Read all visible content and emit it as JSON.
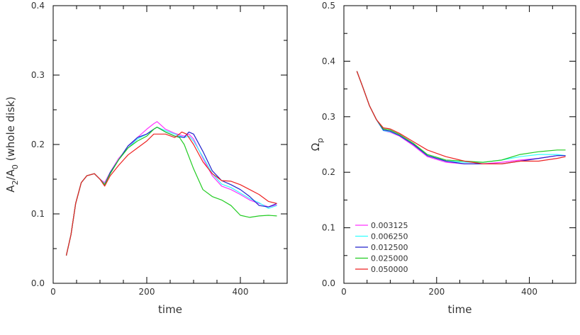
{
  "chart_data": [
    {
      "type": "line",
      "xlabel": "time",
      "ylabel_parts": [
        "A",
        "2",
        "/A",
        "0",
        " (whole disk)"
      ],
      "xlim": [
        0,
        500
      ],
      "ylim": [
        0,
        0.4
      ],
      "xticks": [
        {
          "v": 0,
          "label": "0"
        },
        {
          "v": 200,
          "label": "200"
        },
        {
          "v": 400,
          "label": "400"
        }
      ],
      "yticks": [
        {
          "v": 0,
          "label": "0.0"
        },
        {
          "v": 0.1,
          "label": "0.1"
        },
        {
          "v": 0.2,
          "label": "0.2"
        },
        {
          "v": 0.3,
          "label": "0.3"
        },
        {
          "v": 0.4,
          "label": "0.4"
        }
      ],
      "grid": false,
      "series": [
        {
          "color": "#ff33ff",
          "x": [
            28,
            38,
            48,
            60,
            72,
            88,
            100,
            110,
            122,
            140,
            160,
            180,
            200,
            215,
            222,
            240,
            260,
            280,
            290,
            300,
            320,
            340,
            360,
            380,
            400,
            420,
            440,
            460,
            478
          ],
          "y": [
            0.04,
            0.07,
            0.115,
            0.145,
            0.155,
            0.158,
            0.15,
            0.145,
            0.16,
            0.18,
            0.195,
            0.21,
            0.222,
            0.23,
            0.233,
            0.222,
            0.216,
            0.212,
            0.215,
            0.208,
            0.18,
            0.155,
            0.14,
            0.135,
            0.128,
            0.12,
            0.115,
            0.11,
            0.113
          ]
        },
        {
          "color": "#33ffff",
          "x": [
            28,
            38,
            48,
            60,
            72,
            88,
            100,
            110,
            122,
            140,
            160,
            180,
            200,
            215,
            222,
            240,
            260,
            280,
            290,
            300,
            320,
            340,
            360,
            380,
            400,
            420,
            440,
            460,
            478
          ],
          "y": [
            0.04,
            0.07,
            0.115,
            0.145,
            0.155,
            0.158,
            0.15,
            0.143,
            0.158,
            0.178,
            0.195,
            0.208,
            0.215,
            0.222,
            0.225,
            0.22,
            0.215,
            0.21,
            0.212,
            0.205,
            0.182,
            0.158,
            0.143,
            0.138,
            0.13,
            0.122,
            0.116,
            0.108,
            0.112
          ]
        },
        {
          "color": "#2222cc",
          "x": [
            28,
            38,
            48,
            60,
            72,
            88,
            100,
            110,
            122,
            140,
            160,
            180,
            200,
            215,
            222,
            240,
            260,
            280,
            290,
            300,
            320,
            340,
            360,
            380,
            400,
            420,
            440,
            460,
            478
          ],
          "y": [
            0.04,
            0.07,
            0.115,
            0.145,
            0.155,
            0.158,
            0.15,
            0.142,
            0.16,
            0.178,
            0.198,
            0.21,
            0.215,
            0.222,
            0.225,
            0.218,
            0.212,
            0.21,
            0.218,
            0.215,
            0.19,
            0.162,
            0.148,
            0.142,
            0.135,
            0.125,
            0.112,
            0.11,
            0.115
          ]
        },
        {
          "color": "#22cc22",
          "x": [
            28,
            38,
            48,
            60,
            72,
            88,
            100,
            110,
            122,
            140,
            160,
            180,
            200,
            215,
            222,
            240,
            260,
            270,
            280,
            300,
            320,
            340,
            360,
            380,
            400,
            420,
            440,
            460,
            478
          ],
          "y": [
            0.04,
            0.07,
            0.115,
            0.145,
            0.155,
            0.158,
            0.15,
            0.142,
            0.158,
            0.178,
            0.195,
            0.205,
            0.212,
            0.222,
            0.225,
            0.218,
            0.212,
            0.21,
            0.2,
            0.165,
            0.135,
            0.125,
            0.12,
            0.112,
            0.098,
            0.095,
            0.097,
            0.098,
            0.097
          ]
        },
        {
          "color": "#ee2222",
          "x": [
            28,
            38,
            48,
            60,
            72,
            88,
            100,
            110,
            122,
            140,
            160,
            180,
            200,
            215,
            222,
            240,
            260,
            275,
            285,
            300,
            320,
            340,
            360,
            380,
            400,
            420,
            440,
            460,
            478
          ],
          "y": [
            0.04,
            0.07,
            0.115,
            0.145,
            0.155,
            0.158,
            0.15,
            0.14,
            0.155,
            0.17,
            0.185,
            0.195,
            0.205,
            0.215,
            0.215,
            0.215,
            0.21,
            0.218,
            0.215,
            0.2,
            0.175,
            0.158,
            0.148,
            0.147,
            0.142,
            0.135,
            0.128,
            0.118,
            0.115
          ]
        }
      ]
    },
    {
      "type": "line",
      "xlabel": "time",
      "ylabel_parts": [
        "Ω",
        "p"
      ],
      "xlim": [
        0,
        500
      ],
      "ylim": [
        0,
        0.5
      ],
      "xticks": [
        {
          "v": 0,
          "label": "0"
        },
        {
          "v": 200,
          "label": "200"
        },
        {
          "v": 400,
          "label": "400"
        }
      ],
      "yticks": [
        {
          "v": 0,
          "label": "0.0"
        },
        {
          "v": 0.1,
          "label": "0.1"
        },
        {
          "v": 0.2,
          "label": "0.2"
        },
        {
          "v": 0.3,
          "label": "0.3"
        },
        {
          "v": 0.4,
          "label": "0.4"
        },
        {
          "v": 0.5,
          "label": "0.5"
        }
      ],
      "grid": false,
      "legend_position": "bottom-left",
      "series": [
        {
          "name": "0.003125",
          "color": "#ff33ff",
          "x": [
            28,
            40,
            55,
            70,
            85,
            100,
            120,
            150,
            180,
            220,
            260,
            300,
            340,
            380,
            420,
            460,
            478
          ],
          "y": [
            0.382,
            0.355,
            0.32,
            0.295,
            0.275,
            0.272,
            0.265,
            0.248,
            0.228,
            0.218,
            0.215,
            0.215,
            0.218,
            0.222,
            0.225,
            0.23,
            0.23
          ]
        },
        {
          "name": "0.006250",
          "color": "#33ffff",
          "x": [
            28,
            40,
            55,
            70,
            85,
            100,
            120,
            150,
            180,
            220,
            260,
            300,
            340,
            380,
            420,
            460,
            478
          ],
          "y": [
            0.382,
            0.355,
            0.32,
            0.295,
            0.275,
            0.273,
            0.266,
            0.25,
            0.23,
            0.22,
            0.218,
            0.218,
            0.222,
            0.228,
            0.232,
            0.232,
            0.23
          ]
        },
        {
          "name": "0.012500",
          "color": "#2222cc",
          "x": [
            28,
            40,
            55,
            70,
            85,
            100,
            120,
            150,
            180,
            220,
            260,
            300,
            340,
            380,
            420,
            460,
            478
          ],
          "y": [
            0.382,
            0.355,
            0.32,
            0.295,
            0.276,
            0.274,
            0.266,
            0.25,
            0.23,
            0.22,
            0.215,
            0.215,
            0.215,
            0.22,
            0.225,
            0.23,
            0.23
          ]
        },
        {
          "name": "0.025000",
          "color": "#22cc22",
          "x": [
            28,
            40,
            55,
            70,
            85,
            100,
            120,
            150,
            180,
            220,
            260,
            300,
            340,
            380,
            420,
            460,
            478
          ],
          "y": [
            0.382,
            0.355,
            0.32,
            0.295,
            0.278,
            0.276,
            0.268,
            0.252,
            0.232,
            0.222,
            0.22,
            0.218,
            0.222,
            0.232,
            0.237,
            0.24,
            0.24
          ]
        },
        {
          "name": "0.050000",
          "color": "#ee2222",
          "x": [
            28,
            40,
            55,
            70,
            85,
            100,
            120,
            150,
            180,
            220,
            260,
            300,
            340,
            380,
            420,
            460,
            478
          ],
          "y": [
            0.382,
            0.355,
            0.32,
            0.295,
            0.28,
            0.278,
            0.27,
            0.255,
            0.24,
            0.228,
            0.22,
            0.215,
            0.215,
            0.22,
            0.22,
            0.225,
            0.228
          ]
        }
      ]
    }
  ]
}
